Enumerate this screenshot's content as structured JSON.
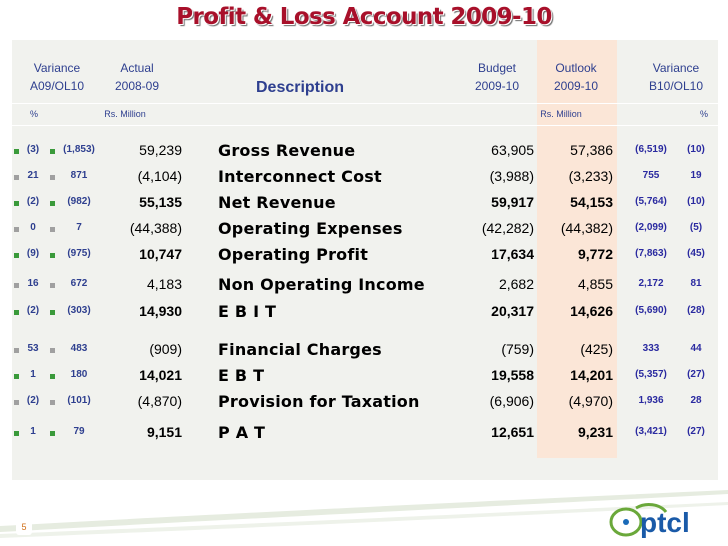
{
  "title": "Profit & Loss Account 2009-10",
  "headers": {
    "variance_left_1": "Variance",
    "variance_left_2": "A09/OL10",
    "actual_1": "Actual",
    "actual_2": "2008-09",
    "description": "Description",
    "budget_1": "Budget",
    "budget_2": "2009-10",
    "outlook_1": "Outlook",
    "outlook_2": "2009-10",
    "variance_right_1": "Variance",
    "variance_right_2": "B10/OL10",
    "pct_left": "%",
    "rs_left": "Rs. Million",
    "rs_right": "Rs. Million",
    "pct_right": "%"
  },
  "rows": [
    {
      "pct": "(3)",
      "var": "(1,853)",
      "actual": "59,239",
      "desc": "Gross Revenue",
      "budget": "63,905",
      "outlook": "57,386",
      "var2": "(6,519)",
      "pct2": "(10)",
      "bold": false
    },
    {
      "pct": "21",
      "var": "871",
      "actual": "(4,104)",
      "desc": "Interconnect Cost",
      "budget": "(3,988)",
      "outlook": "(3,233)",
      "var2": "755",
      "pct2": "19",
      "bold": false
    },
    {
      "pct": "(2)",
      "var": "(982)",
      "actual": "55,135",
      "desc": "Net Revenue",
      "budget": "59,917",
      "outlook": "54,153",
      "var2": "(5,764)",
      "pct2": "(10)",
      "bold": true
    },
    {
      "pct": "0",
      "var": "7",
      "actual": "(44,388)",
      "desc": "Operating Expenses",
      "budget": "(42,282)",
      "outlook": "(44,382)",
      "var2": "(2,099)",
      "pct2": "(5)",
      "bold": false
    },
    {
      "pct": "(9)",
      "var": "(975)",
      "actual": "10,747",
      "desc": "Operating Profit",
      "budget": "17,634",
      "outlook": "9,772",
      "var2": "(7,863)",
      "pct2": "(45)",
      "bold": true
    },
    {
      "pct": "16",
      "var": "672",
      "actual": "4,183",
      "desc": "Non Operating Income",
      "budget": "2,682",
      "outlook": "4,855",
      "var2": "2,172",
      "pct2": "81",
      "bold": false
    },
    {
      "pct": "(2)",
      "var": "(303)",
      "actual": "14,930",
      "desc": "E B I T",
      "budget": "20,317",
      "outlook": "14,626",
      "var2": "(5,690)",
      "pct2": "(28)",
      "bold": true
    },
    {
      "pct": "53",
      "var": "483",
      "actual": "(909)",
      "desc": "Financial Charges",
      "budget": "(759)",
      "outlook": "(425)",
      "var2": "333",
      "pct2": "44",
      "bold": false
    },
    {
      "pct": "1",
      "var": "180",
      "actual": "14,021",
      "desc": "E B T",
      "budget": "19,558",
      "outlook": "14,201",
      "var2": "(5,357)",
      "pct2": "(27)",
      "bold": true
    },
    {
      "pct": "(2)",
      "var": "(101)",
      "actual": "(4,870)",
      "desc": "Provision for Taxation",
      "budget": "(6,906)",
      "outlook": "(4,970)",
      "var2": "1,936",
      "pct2": "28",
      "bold": false
    },
    {
      "pct": "1",
      "var": "79",
      "actual": "9,151",
      "desc": "P A T",
      "budget": "12,651",
      "outlook": "9,231",
      "var2": "(3,421)",
      "pct2": "(27)",
      "bold": true
    }
  ],
  "footer": {
    "page_number": "5",
    "logo_text": "ptcl"
  },
  "colors": {
    "title": "#a8102a",
    "header_text": "#2e3f8f",
    "outlook_column": "#fbe6d7",
    "panel": "#f1f2ee",
    "logo_green": "#6aa83a"
  }
}
